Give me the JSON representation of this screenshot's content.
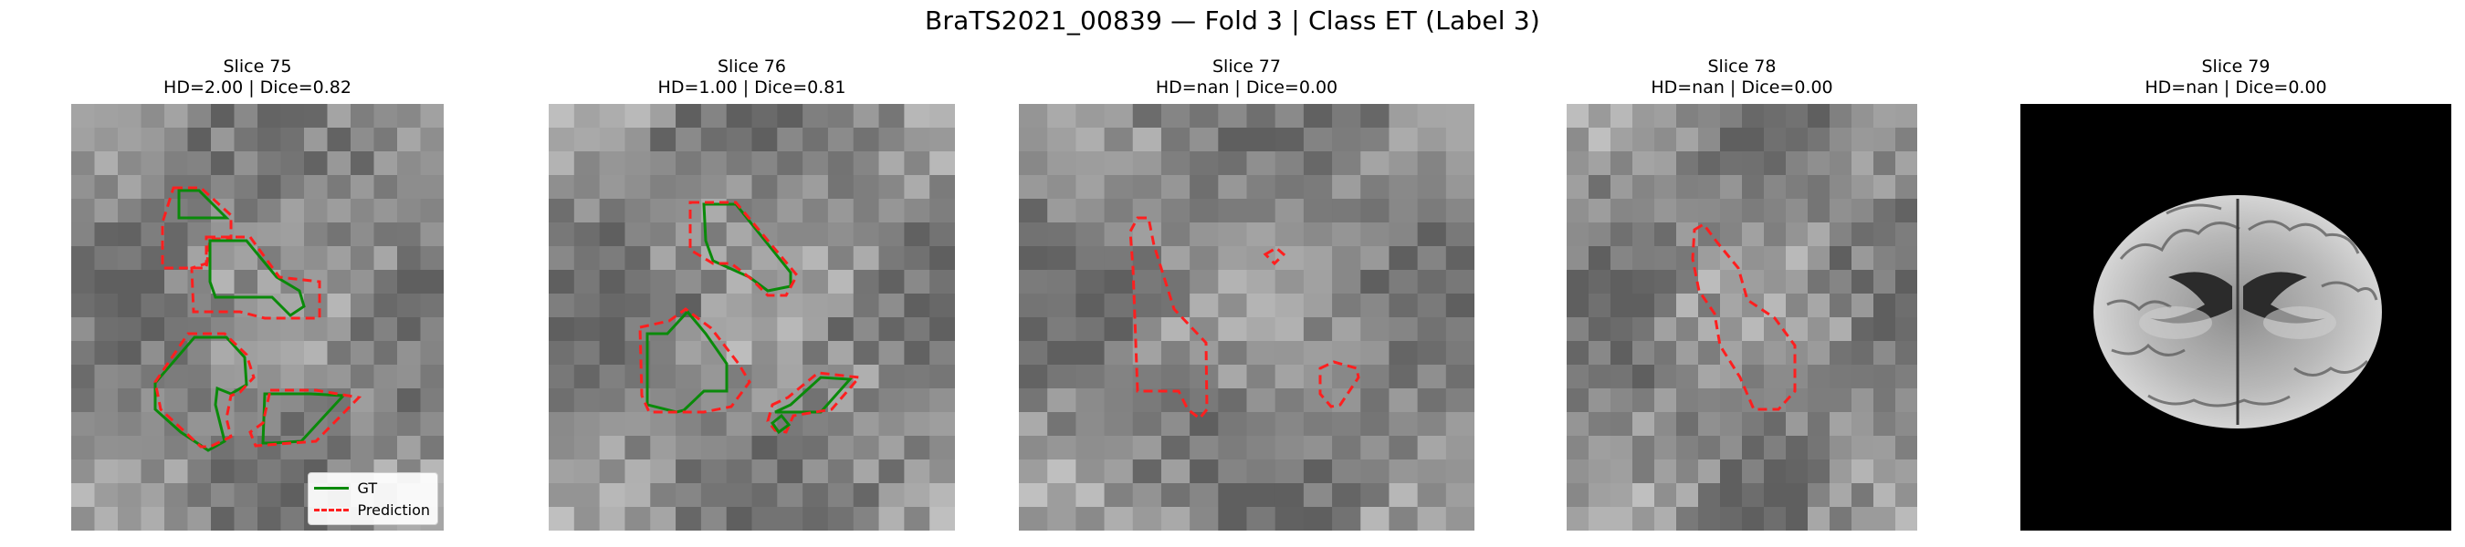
{
  "figure": {
    "title": "BraTS2021_00839 — Fold 3 | Class ET (Label 3)"
  },
  "panels": [
    {
      "slice": "Slice 75",
      "metrics": "HD=2.00 | Dice=0.82"
    },
    {
      "slice": "Slice 76",
      "metrics": "HD=1.00 | Dice=0.81"
    },
    {
      "slice": "Slice 77",
      "metrics": "HD=nan | Dice=0.00"
    },
    {
      "slice": "Slice 78",
      "metrics": "HD=nan | Dice=0.00"
    },
    {
      "slice": "Slice 79",
      "metrics": "HD=nan | Dice=0.00"
    }
  ],
  "legend": {
    "gt_label": "GT",
    "pred_label": "Prediction"
  },
  "colors": {
    "gt": "#0a8a0a",
    "prediction": "#ff1f1f",
    "background": "#000000"
  }
}
